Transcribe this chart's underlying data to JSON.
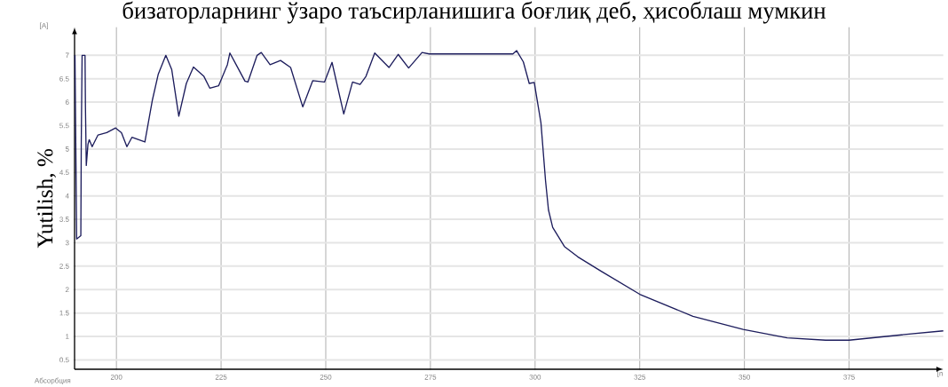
{
  "chart_data": {
    "type": "line",
    "title": "бизаторларнинг ўзаро таъсирланишига боғлиқ деб, ҳисоблаш мумкин",
    "ylabel": "Yutilish, %",
    "annotations": [
      "[A]",
      "Абсорбция",
      "[n"
    ],
    "x": [
      190.1,
      190.5,
      191.5,
      191.6,
      191.8,
      192.5,
      192.6,
      192.8,
      193.2,
      193.5,
      194.2,
      195.6,
      197.7,
      199.8,
      201.2,
      202.5,
      203.7,
      206.8,
      208.6,
      210.0,
      211.8,
      213.2,
      214.9,
      216.7,
      218.4,
      220.9,
      222.3,
      224.4,
      226.5,
      227.1,
      228.6,
      230.7,
      231.4,
      233.6,
      234.6,
      236.7,
      239.2,
      241.6,
      244.5,
      246.9,
      249.7,
      251.5,
      254.3,
      256.4,
      258.2,
      259.6,
      261.7,
      265.1,
      267.3,
      269.8,
      273.0,
      274.7,
      294.7,
      295.6,
      297.2,
      298.6,
      299.8,
      301.4,
      302.5,
      303.2,
      304.2,
      307.0,
      310.2,
      315.8,
      325.0,
      337.7,
      349.7,
      360.2,
      369.4,
      375.0,
      387.0,
      397.5
    ],
    "values": [
      7.0,
      3.08,
      3.15,
      5.1,
      7.0,
      7.0,
      5.9,
      4.65,
      5.1,
      5.2,
      5.05,
      5.3,
      5.35,
      5.45,
      5.35,
      5.05,
      5.25,
      5.15,
      6.05,
      6.6,
      7.0,
      6.7,
      5.7,
      6.4,
      6.75,
      6.55,
      6.3,
      6.35,
      6.8,
      7.05,
      6.8,
      6.45,
      6.43,
      7.0,
      7.06,
      6.8,
      6.89,
      6.74,
      5.9,
      6.46,
      6.43,
      6.85,
      5.75,
      6.43,
      6.38,
      6.55,
      7.05,
      6.74,
      7.02,
      6.73,
      7.06,
      7.03,
      7.03,
      7.1,
      6.86,
      6.4,
      6.42,
      5.56,
      4.32,
      3.7,
      3.33,
      2.92,
      2.7,
      2.39,
      1.9,
      1.43,
      1.15,
      0.97,
      0.92,
      0.92,
      1.03,
      1.12
    ],
    "color": "#1c1c5c",
    "xlim": [
      190,
      397.5
    ],
    "ylim": [
      0.3,
      7.6
    ],
    "xticks": [
      200,
      225,
      250,
      275,
      300,
      325,
      350,
      375
    ],
    "yticks": [
      0.5,
      1,
      1.5,
      2,
      2.5,
      3,
      3.5,
      4,
      4.5,
      5,
      5.5,
      6,
      6.5,
      7
    ],
    "grid": true
  }
}
